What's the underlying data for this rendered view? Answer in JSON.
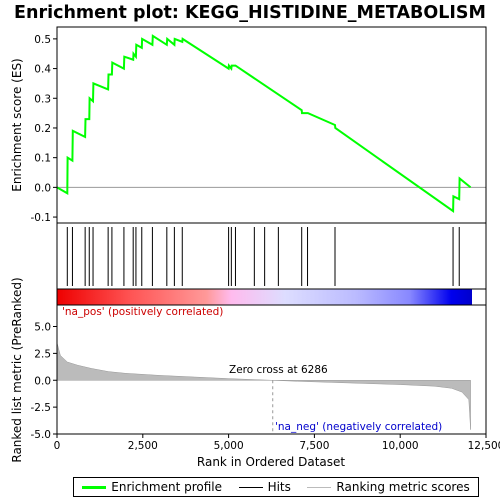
{
  "chart_data": {
    "type": "line",
    "title": "Enrichment plot: KEGG_HISTIDINE_METABOLISM",
    "xlabel": "Rank in Ordered Dataset",
    "es_panel": {
      "ylabel": "Enrichment score (ES)",
      "ylim": [
        -0.12,
        0.54
      ],
      "yticks": [
        -0.1,
        0.0,
        0.1,
        0.2,
        0.3,
        0.4,
        0.5
      ],
      "ytick_labels": [
        "-0.1",
        "0.0",
        "0.1",
        "0.2",
        "0.3",
        "0.4",
        "0.5"
      ],
      "series": [
        {
          "name": "Enrichment profile",
          "color": "#00ff00",
          "x": [
            0,
            300,
            310,
            450,
            460,
            820,
            830,
            940,
            950,
            1050,
            1060,
            1490,
            1500,
            1600,
            1610,
            1950,
            1960,
            2220,
            2230,
            2300,
            2310,
            2470,
            2480,
            2780,
            2790,
            3200,
            3210,
            3420,
            3430,
            3650,
            3660,
            5000,
            5010,
            5080,
            5090,
            5200,
            7130,
            7140,
            7300,
            7310,
            8100,
            8110,
            11540,
            11550,
            11720,
            11730,
            12050
          ],
          "y": [
            0.0,
            -0.02,
            0.1,
            0.09,
            0.19,
            0.17,
            0.23,
            0.23,
            0.3,
            0.29,
            0.35,
            0.33,
            0.38,
            0.38,
            0.42,
            0.4,
            0.44,
            0.43,
            0.45,
            0.44,
            0.48,
            0.47,
            0.5,
            0.48,
            0.51,
            0.48,
            0.5,
            0.48,
            0.5,
            0.49,
            0.5,
            0.4,
            0.41,
            0.4,
            0.41,
            0.41,
            0.26,
            0.25,
            0.25,
            0.25,
            0.21,
            0.2,
            -0.08,
            -0.03,
            -0.04,
            0.03,
            0.0
          ]
        }
      ]
    },
    "hits_panel": {
      "hits": [
        300,
        450,
        820,
        940,
        1050,
        1490,
        1600,
        1950,
        2220,
        2300,
        2470,
        2780,
        3200,
        3420,
        3650,
        5000,
        5080,
        5200,
        5750,
        6050,
        6450,
        7130,
        7300,
        8100,
        11540,
        11720
      ],
      "gradient_colors": [
        "#ff0000",
        "#ff6666",
        "#ff9999",
        "#ffbbee",
        "#ddddff",
        "#aaaaff",
        "#6666ff",
        "#0000ff"
      ]
    },
    "metric_panel": {
      "ylabel": "Ranked list metric (PreRanked)",
      "ylim": [
        -5,
        7
      ],
      "yticks": [
        -5.0,
        -2.5,
        0.0,
        2.5,
        5.0
      ],
      "ytick_labels": [
        "-5.0",
        "-2.5",
        "0.0",
        "2.5",
        "5.0"
      ],
      "series": [
        {
          "name": "Ranking metric scores",
          "color": "#bbbbbb",
          "x": [
            0,
            100,
            300,
            600,
            1000,
            1500,
            2000,
            3000,
            4000,
            5000,
            6286,
            7000,
            8000,
            9000,
            10000,
            11000,
            11500,
            11800,
            12000,
            12050
          ],
          "y": [
            3.5,
            2.3,
            1.7,
            1.4,
            1.1,
            0.8,
            0.65,
            0.45,
            0.3,
            0.15,
            0.0,
            -0.1,
            -0.2,
            -0.3,
            -0.4,
            -0.55,
            -0.75,
            -1.1,
            -1.8,
            -4.6
          ]
        }
      ],
      "annotations": {
        "na_pos": "'na_pos' (positively correlated)",
        "zero_cross": "Zero cross at 6286",
        "na_neg": "'na_neg' (negatively correlated)"
      },
      "zero_cross_x": 6286
    },
    "xlim": [
      0,
      12500
    ],
    "xticks": [
      0,
      2500,
      5000,
      7500,
      10000,
      12500
    ],
    "xtick_labels": [
      "0",
      "2,500",
      "5,000",
      "7,500",
      "10,000",
      "12,500"
    ],
    "legend": [
      {
        "label": "Enrichment profile",
        "color": "#00ff00"
      },
      {
        "label": "Hits",
        "color": "#000000"
      },
      {
        "label": "Ranking metric scores",
        "color": "#bbbbbb"
      }
    ]
  }
}
